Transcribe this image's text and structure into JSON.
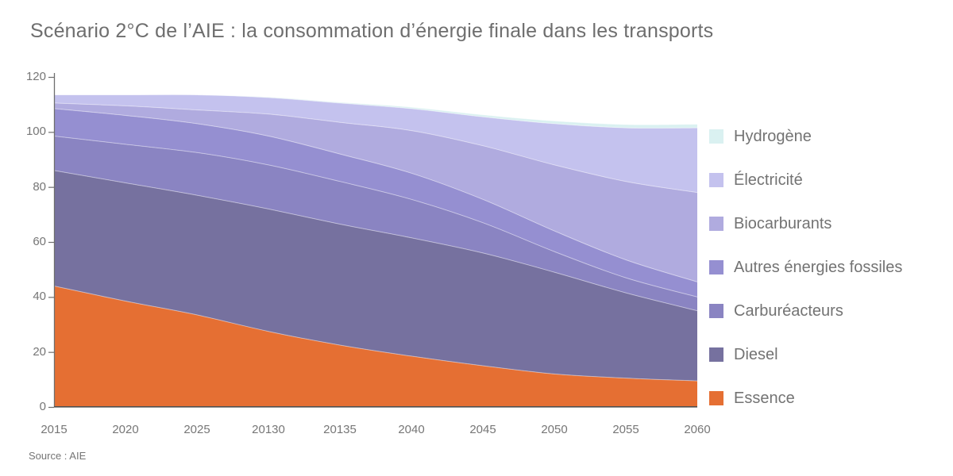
{
  "title": "Scénario 2°C de l’AIE : la consommation d’énergie finale dans les transports",
  "source": "Source : AIE",
  "text_color": "#757575",
  "axis_color": "#6e6e6e",
  "chart_data": {
    "type": "area",
    "stacked": true,
    "stack_order": "bottom-to-top",
    "title": "Scénario 2°C de l’AIE : la consommation d’énergie finale dans les transports",
    "x_labels": [
      "2015",
      "2020",
      "2025",
      "20130",
      "20135",
      "2040",
      "2045",
      "2050",
      "2055",
      "2060"
    ],
    "y_ticks": [
      0,
      20,
      40,
      60,
      80,
      100,
      120
    ],
    "ylim": [
      0,
      120
    ],
    "grid": false,
    "legend_position": "right",
    "series": [
      {
        "key": "essence",
        "name": "Essence",
        "color": "#e56f33",
        "values": [
          44,
          38.5,
          33.5,
          27.5,
          22.5,
          18.5,
          15,
          12,
          10.5,
          9.5
        ]
      },
      {
        "key": "diesel",
        "name": "Diesel",
        "color": "#76719f",
        "values": [
          42,
          43,
          43.5,
          44.5,
          44,
          43,
          41,
          37,
          31,
          25.5
        ]
      },
      {
        "key": "carbureacteurs",
        "name": "Carburéacteurs",
        "color": "#8a84c2",
        "values": [
          12.5,
          14,
          15.5,
          16,
          15.5,
          14,
          11,
          7.5,
          5.5,
          5
        ]
      },
      {
        "key": "autres-energies-fossiles",
        "name": "Autres énergies fossiles",
        "color": "#958fd1",
        "values": [
          10,
          10.5,
          10.5,
          10.5,
          10,
          9.5,
          8.5,
          7.5,
          6.5,
          5.5
        ]
      },
      {
        "key": "biocarburants",
        "name": "Biocarburants",
        "color": "#b0abdf",
        "values": [
          2,
          3.5,
          5,
          8,
          11.5,
          15.5,
          19.5,
          24,
          28.5,
          32.5
        ]
      },
      {
        "key": "electricite",
        "name": "Électricité",
        "color": "#c4c2ee",
        "values": [
          3,
          4,
          5.5,
          6,
          7,
          8,
          10.5,
          15,
          19.5,
          23.5
        ]
      },
      {
        "key": "hydrogene",
        "name": "Hydrogène",
        "color": "#daf1f1",
        "values": [
          0,
          0,
          0,
          0.2,
          0.3,
          0.5,
          0.7,
          1,
          1.2,
          1.3
        ]
      }
    ]
  }
}
